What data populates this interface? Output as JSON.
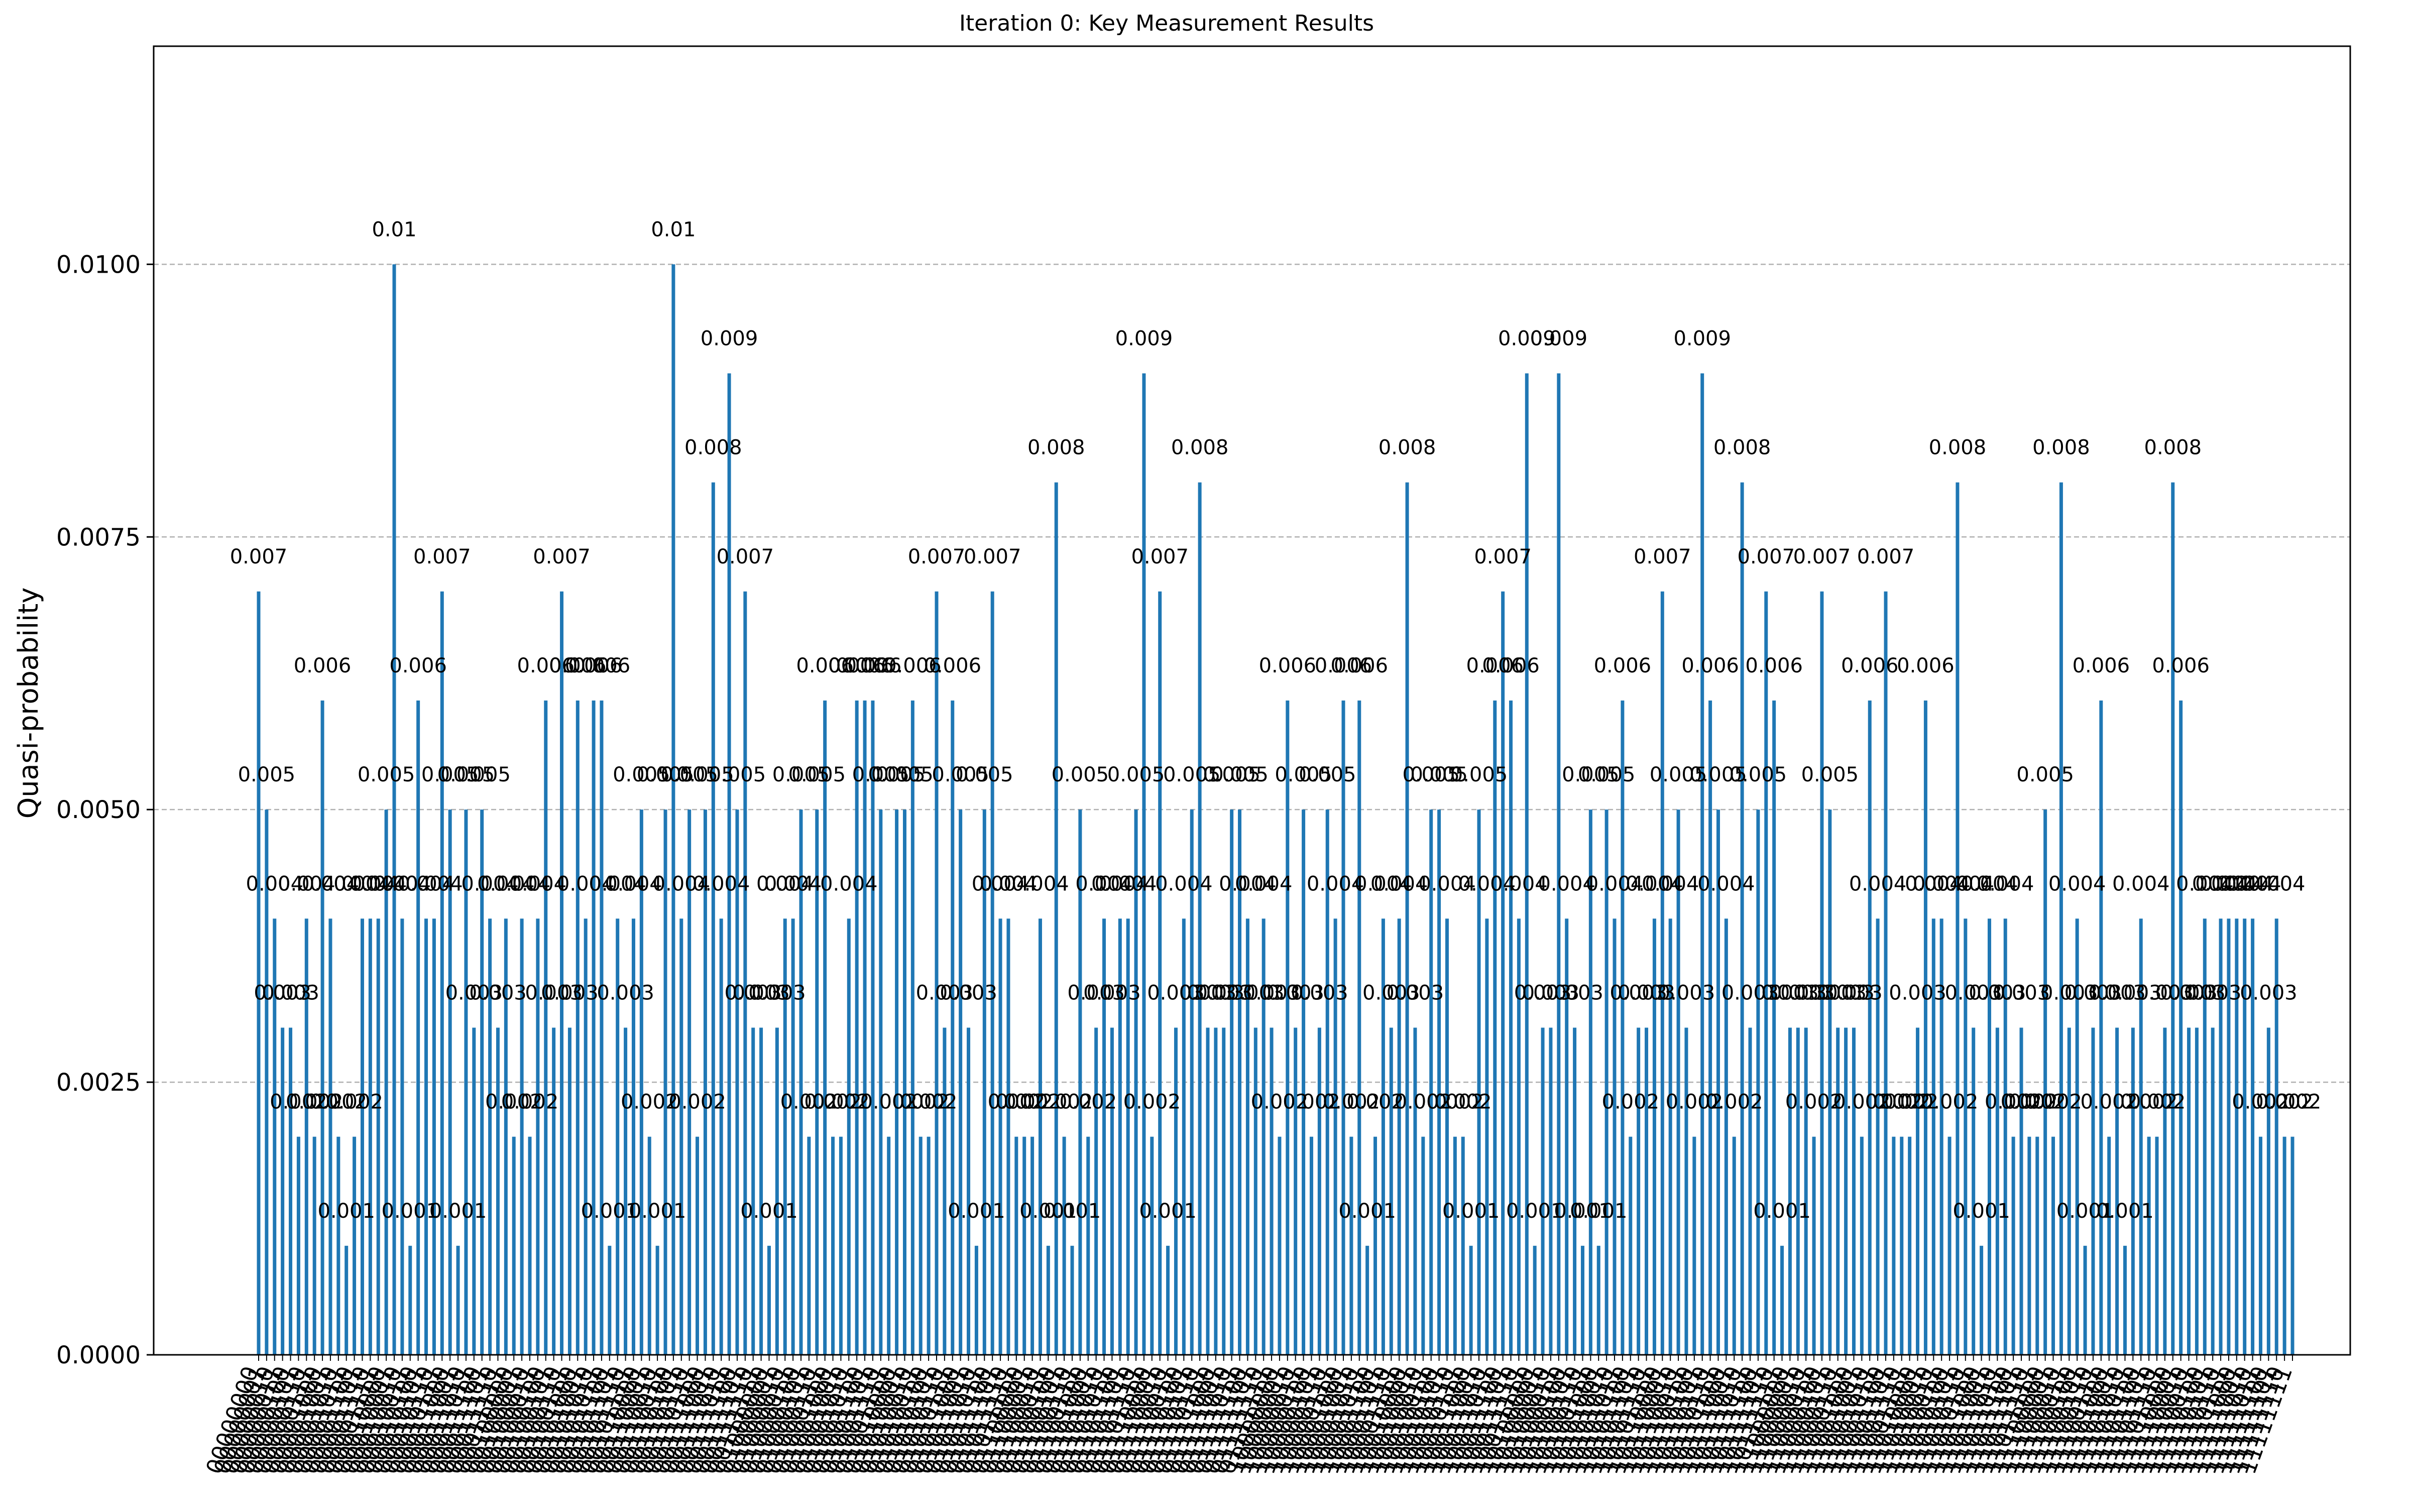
{
  "chart_data": {
    "type": "bar",
    "title": "Iteration 0: Key Measurement Results",
    "xlabel": "",
    "ylabel": "Quasi-probability",
    "ylim": [
      0,
      0.012
    ],
    "yticks": [
      "0.0000",
      "0.0025",
      "0.0050",
      "0.0075",
      "0.0100"
    ],
    "ytick_values": [
      0,
      0.0025,
      0.005,
      0.0075,
      0.01
    ],
    "grid": "y-dashed",
    "bar_color": "#1f77b4",
    "categories": [
      "00000000",
      "00000001",
      "00000010",
      "00000011",
      "00000100",
      "00000101",
      "00000110",
      "00000111",
      "00001000",
      "00001001",
      "00001010",
      "00001011",
      "00001100",
      "00001101",
      "00001110",
      "00001111",
      "00010000",
      "00010001",
      "00010010",
      "00010011",
      "00010100",
      "00010101",
      "00010110",
      "00010111",
      "00011000",
      "00011001",
      "00011010",
      "00011011",
      "00011100",
      "00011101",
      "00011110",
      "00011111",
      "00100000",
      "00100001",
      "00100010",
      "00100011",
      "00100100",
      "00100101",
      "00100110",
      "00100111",
      "00101000",
      "00101001",
      "00101010",
      "00101011",
      "00101100",
      "00101101",
      "00101110",
      "00101111",
      "00110000",
      "00110001",
      "00110010",
      "00110011",
      "00110100",
      "00110101",
      "00110110",
      "00110111",
      "00111000",
      "00111001",
      "00111010",
      "00111011",
      "00111100",
      "00111101",
      "00111110",
      "00111111",
      "01000000",
      "01000001",
      "01000010",
      "01000011",
      "01000100",
      "01000101",
      "01000110",
      "01000111",
      "01001000",
      "01001001",
      "01001010",
      "01001011",
      "01001100",
      "01001101",
      "01001110",
      "01001111",
      "01010000",
      "01010001",
      "01010010",
      "01010011",
      "01010100",
      "01010101",
      "01010110",
      "01010111",
      "01011000",
      "01011001",
      "01011010",
      "01011011",
      "01011100",
      "01011101",
      "01011110",
      "01011111",
      "01100000",
      "01100001",
      "01100010",
      "01100011",
      "01100100",
      "01100101",
      "01100110",
      "01100111",
      "01101000",
      "01101001",
      "01101010",
      "01101011",
      "01101100",
      "01101101",
      "01101110",
      "01101111",
      "01110000",
      "01110001",
      "01110010",
      "01110011",
      "01110100",
      "01110101",
      "01110110",
      "01110111",
      "01111000",
      "01111001",
      "01111010",
      "01111011",
      "01111100",
      "01111101",
      "01111110",
      "01111111",
      "10000000",
      "10000001",
      "10000010",
      "10000011",
      "10000100",
      "10000101",
      "10000110",
      "10000111",
      "10001000",
      "10001001",
      "10001010",
      "10001011",
      "10001100",
      "10001101",
      "10001110",
      "10001111",
      "10010000",
      "10010001",
      "10010010",
      "10010011",
      "10010100",
      "10010101",
      "10010110",
      "10010111",
      "10011000",
      "10011001",
      "10011010",
      "10011011",
      "10011100",
      "10011101",
      "10011110",
      "10011111",
      "10100000",
      "10100001",
      "10100010",
      "10100011",
      "10100100",
      "10100101",
      "10100110",
      "10100111",
      "10101000",
      "10101001",
      "10101010",
      "10101011",
      "10101100",
      "10101101",
      "10101110",
      "10101111",
      "10110000",
      "10110001",
      "10110010",
      "10110011",
      "10110100",
      "10110101",
      "10110110",
      "10110111",
      "10111000",
      "10111001",
      "10111010",
      "10111011",
      "10111100",
      "10111101",
      "10111110",
      "10111111",
      "11000000",
      "11000001",
      "11000010",
      "11000011",
      "11000100",
      "11000101",
      "11000110",
      "11000111",
      "11001000",
      "11001001",
      "11001010",
      "11001011",
      "11001100",
      "11001101",
      "11001110",
      "11001111",
      "11010000",
      "11010001",
      "11010010",
      "11010011",
      "11010100",
      "11010101",
      "11010110",
      "11010111",
      "11011000",
      "11011001",
      "11011010",
      "11011011",
      "11011100",
      "11011101",
      "11011110",
      "11011111",
      "11100000",
      "11100001",
      "11100010",
      "11100011",
      "11100100",
      "11100101",
      "11100110",
      "11100111",
      "11101000",
      "11101001",
      "11101010",
      "11101011",
      "11101100",
      "11101101",
      "11101110",
      "11101111",
      "11110000",
      "11110001",
      "11110010",
      "11110011",
      "11110100",
      "11110101",
      "11110110",
      "11110111",
      "11111000",
      "11111001",
      "11111010",
      "11111011",
      "11111100",
      "11111101",
      "11111110",
      "11111111"
    ],
    "values": [
      0.007,
      0.005,
      0.004,
      0.003,
      0.003,
      0.002,
      0.004,
      0.002,
      0.006,
      0.004,
      0.002,
      0.001,
      0.002,
      0.004,
      0.004,
      0.004,
      0.005,
      0.01,
      0.004,
      0.001,
      0.006,
      0.004,
      0.004,
      0.007,
      0.005,
      0.001,
      0.005,
      0.003,
      0.005,
      0.004,
      0.003,
      0.004,
      0.002,
      0.004,
      0.002,
      0.004,
      0.006,
      0.003,
      0.007,
      0.003,
      0.006,
      0.004,
      0.006,
      0.006,
      0.001,
      0.004,
      0.003,
      0.004,
      0.005,
      0.002,
      0.001,
      0.005,
      0.01,
      0.004,
      0.005,
      0.002,
      0.005,
      0.008,
      0.004,
      0.009,
      0.005,
      0.007,
      0.003,
      0.003,
      0.001,
      0.003,
      0.004,
      0.004,
      0.005,
      0.002,
      0.005,
      0.006,
      0.002,
      0.002,
      0.004,
      0.006,
      0.006,
      0.006,
      0.005,
      0.002,
      0.005,
      0.005,
      0.006,
      0.002,
      0.002,
      0.007,
      0.003,
      0.006,
      0.005,
      0.003,
      0.001,
      0.005,
      0.007,
      0.004,
      0.004,
      0.002,
      0.002,
      0.002,
      0.004,
      0.001,
      0.008,
      0.002,
      0.001,
      0.005,
      0.002,
      0.003,
      0.004,
      0.003,
      0.004,
      0.004,
      0.005,
      0.009,
      0.002,
      0.007,
      0.001,
      0.003,
      0.004,
      0.005,
      0.008,
      0.003,
      0.003,
      0.003,
      0.005,
      0.005,
      0.004,
      0.003,
      0.004,
      0.003,
      0.002,
      0.006,
      0.003,
      0.005,
      0.002,
      0.003,
      0.005,
      0.004,
      0.006,
      0.002,
      0.006,
      0.001,
      0.002,
      0.004,
      0.003,
      0.004,
      0.008,
      0.003,
      0.002,
      0.005,
      0.005,
      0.004,
      0.002,
      0.002,
      0.001,
      0.005,
      0.004,
      0.006,
      0.007,
      0.006,
      0.004,
      0.009,
      0.001,
      0.003,
      0.003,
      0.009,
      0.004,
      0.003,
      0.001,
      0.005,
      0.001,
      0.005,
      0.004,
      0.006,
      0.002,
      0.003,
      0.003,
      0.004,
      0.007,
      0.004,
      0.005,
      0.003,
      0.002,
      0.009,
      0.006,
      0.005,
      0.004,
      0.002,
      0.008,
      0.003,
      0.005,
      0.007,
      0.006,
      0.001,
      0.003,
      0.003,
      0.003,
      0.002,
      0.007,
      0.005,
      0.003,
      0.003,
      0.003,
      0.002,
      0.006,
      0.004,
      0.007,
      0.002,
      0.002,
      0.002,
      0.003,
      0.006,
      0.004,
      0.004,
      0.002,
      0.008,
      0.004,
      0.003,
      0.001,
      0.004,
      0.003,
      0.004,
      0.002,
      0.003,
      0.002,
      0.002,
      0.005,
      0.002,
      0.008,
      0.003,
      0.004,
      0.001,
      0.003,
      0.006,
      0.002,
      0.003,
      0.001,
      0.003,
      0.004,
      0.002,
      0.002,
      0.003,
      0.008,
      0.006,
      0.003,
      0.003,
      0.004,
      0.003,
      0.004,
      0.004,
      0.004,
      0.004,
      0.004,
      0.002,
      0.003,
      0.004,
      0.002,
      0.002
    ]
  }
}
